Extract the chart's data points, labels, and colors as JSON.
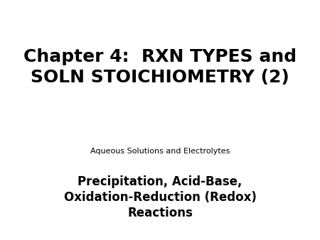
{
  "background_color": "#ffffff",
  "title_line1": "Chapter 4:  RXN TYPES and",
  "title_line2": "SOLN STOICHIOMETRY (2)",
  "title_fontsize": 18,
  "title_color": "#000000",
  "title_fontweight": "bold",
  "subtitle_small": "Aqueous Solutions and Electrolytes",
  "subtitle_small_fontsize": 8,
  "subtitle_small_color": "#000000",
  "subtitle_large_line1": "Precipitation, Acid-Base,",
  "subtitle_large_line2": "Oxidation-Reduction (Redox)",
  "subtitle_large_line3": "Reactions",
  "subtitle_large_fontsize": 12,
  "subtitle_large_color": "#000000",
  "font_family": "DejaVu Sans"
}
